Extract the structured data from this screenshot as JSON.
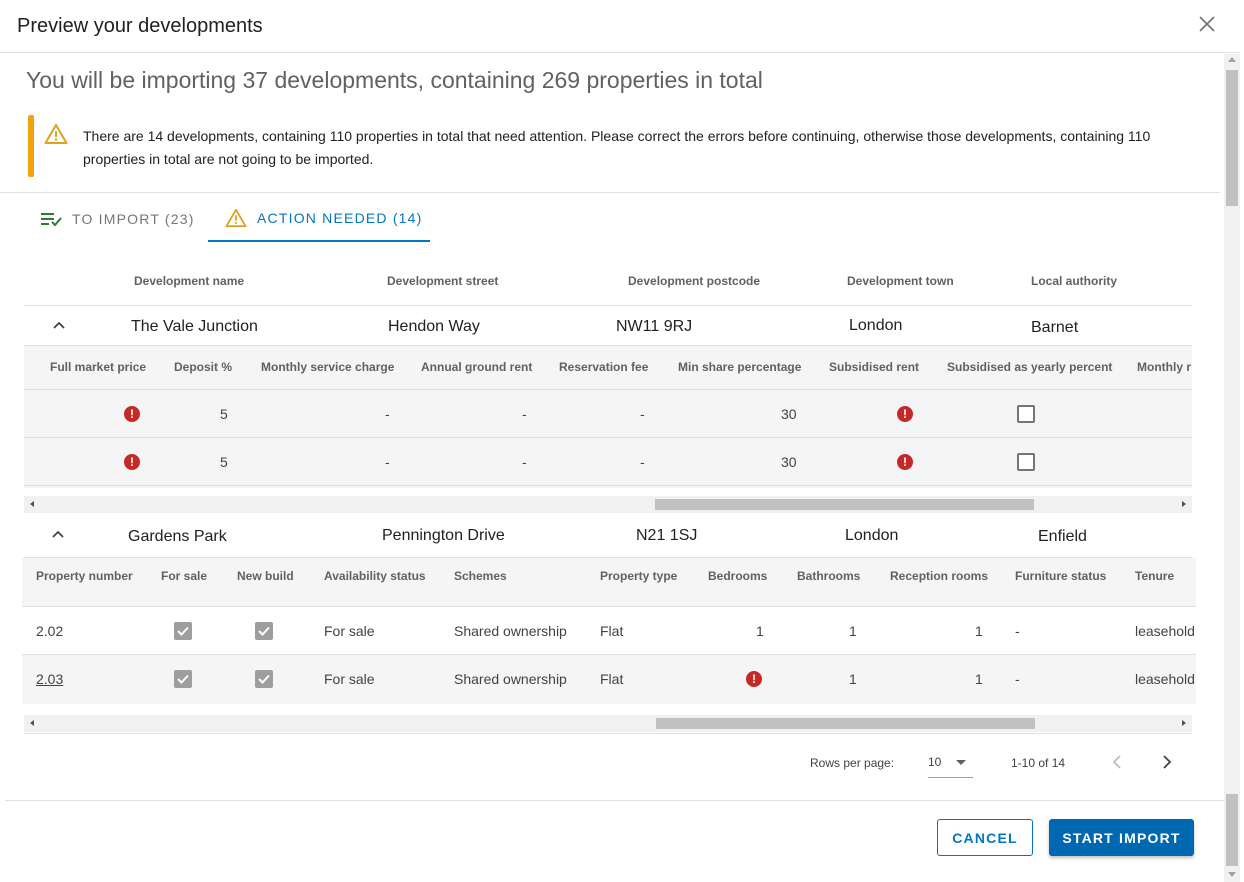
{
  "dialog": {
    "title": "Preview your developments",
    "headline": "You will be importing 37 developments, containing 269 properties in total",
    "alert_text": "There are 14 developments, containing 110 properties in total that need attention. Please correct the errors before continuing, otherwise those developments, containing 110 properties in total are not going to be imported."
  },
  "tabs": [
    {
      "label": "TO IMPORT (23)",
      "icon": "playlist-check-icon",
      "active": false
    },
    {
      "label": "ACTION NEEDED (14)",
      "icon": "warning-icon",
      "active": true
    }
  ],
  "dev_headers": [
    "Development name",
    "Development street",
    "Development postcode",
    "Development town",
    "Local authority"
  ],
  "developments": [
    {
      "name": "The Vale Junction",
      "street": "Hendon Way",
      "postcode": "NW11 9RJ",
      "town": "London",
      "authority": "Barnet",
      "sub_headers": [
        "Full market price",
        "Deposit %",
        "Monthly service charge",
        "Annual ground rent",
        "Reservation fee",
        "Min share percentage",
        "Subsidised rent",
        "Subsidised as yearly percent",
        "Monthly r"
      ],
      "rows": [
        {
          "deposit": "5",
          "service": "-",
          "ground": "-",
          "reservation": "-",
          "min_share": "30"
        },
        {
          "deposit": "5",
          "service": "-",
          "ground": "-",
          "reservation": "-",
          "min_share": "30"
        }
      ]
    },
    {
      "name": "Gardens Park",
      "street": "Pennington Drive",
      "postcode": "N21 1SJ",
      "town": "London",
      "authority": "Enfield",
      "sub_headers": [
        "Property number",
        "For sale",
        "New build",
        "Availability status",
        "Schemes",
        "Property type",
        "Bedrooms",
        "Bathrooms",
        "Reception rooms",
        "Furniture status",
        "Tenure"
      ],
      "rows": [
        {
          "number": "2.02",
          "availability": "For sale",
          "schemes": "Shared ownership",
          "type": "Flat",
          "bedrooms": "1",
          "bathrooms": "1",
          "reception": "1",
          "furniture": "-",
          "tenure": "leasehold"
        },
        {
          "number": "2.03",
          "availability": "For sale",
          "schemes": "Shared ownership",
          "type": "Flat",
          "bedrooms": "",
          "bathrooms": "1",
          "reception": "1",
          "furniture": "-",
          "tenure": "leasehold"
        }
      ]
    }
  ],
  "pagination": {
    "rows_label": "Rows per page:",
    "rows_value": "10",
    "range": "1-10 of 14"
  },
  "actions": {
    "cancel": "CANCEL",
    "start": "START IMPORT"
  },
  "colors": {
    "accent": "#0077c0",
    "warning": "#f0a30a",
    "error": "#c62828",
    "success": "#2e7d32"
  }
}
